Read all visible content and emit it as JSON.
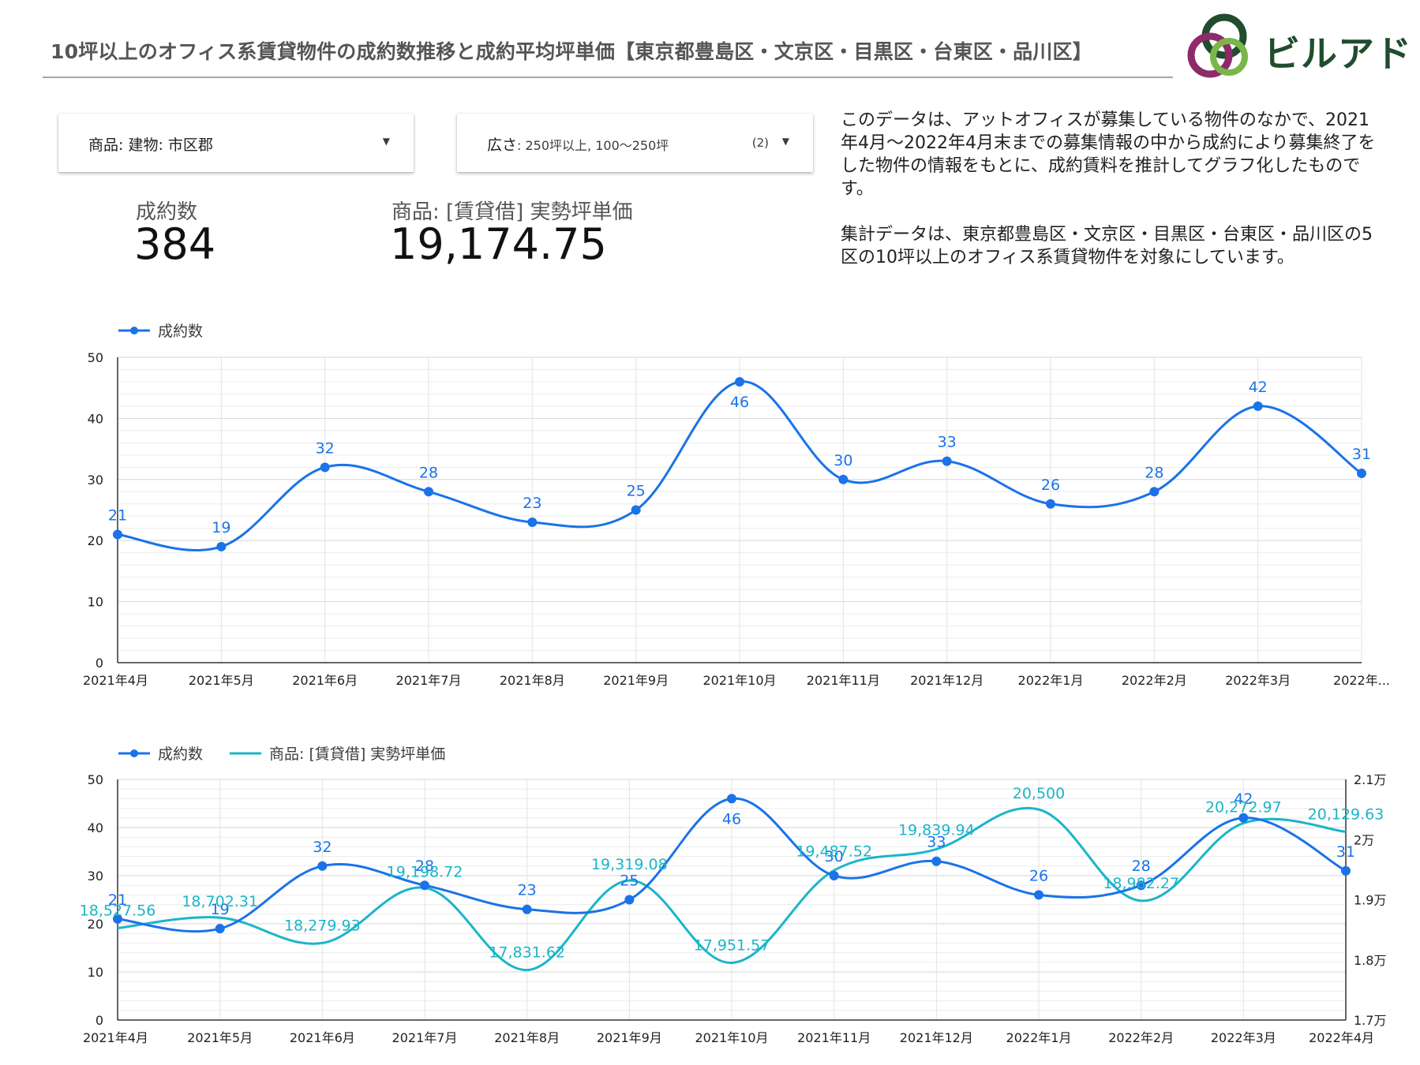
{
  "header": {
    "title": "10坪以上のオフィス系賃貸物件の成約数推移と成約平均坪単価【東京都豊島区・文京区・目黒区・台東区・品川区】",
    "logo_text": "ビルアド"
  },
  "filters": [
    {
      "label": "商品: 建物: 市区郡",
      "values": "",
      "count": ""
    },
    {
      "label": "広さ",
      "values": ": 250坪以上, 100〜250坪",
      "count": "(2)"
    }
  ],
  "kpis": [
    {
      "label": "成約数",
      "value": "384"
    },
    {
      "label": "商品: [賃貸借] 実勢坪単価",
      "value": "19,174.75"
    }
  ],
  "description": {
    "paragraph1": "このデータは、アットオフィスが募集している物件のなかで、2021年4月〜2022年4月末までの募集情報の中から成約により募集終了をした物件の情報をもとに、成約賃料を推計してグラフ化したものです。",
    "paragraph2": "集計データは、東京都豊島区・文京区・目黒区・台東区・品川区の5区の10坪以上のオフィス系賃貸物件を対象にしています。"
  },
  "colors": {
    "series1": "#1a73e8",
    "series2": "#1bb5c9",
    "grid": "#e0e0e0",
    "axis": "#333333"
  },
  "chart_data": [
    {
      "type": "line",
      "categories": [
        "2021年4月",
        "2021年5月",
        "2021年6月",
        "2021年7月",
        "2021年8月",
        "2021年9月",
        "2021年10月",
        "2021年11月",
        "2021年12月",
        "2022年1月",
        "2022年2月",
        "2022年3月",
        "2022年..."
      ],
      "series": [
        {
          "name": "成約数",
          "values": [
            21,
            19,
            32,
            28,
            23,
            25,
            46,
            30,
            33,
            26,
            28,
            42,
            31
          ],
          "labels": [
            "21",
            "19",
            "32",
            "28",
            "23",
            "25",
            "46",
            "30",
            "33",
            "26",
            "28",
            "42",
            "31"
          ]
        }
      ],
      "y_ticks": [
        "0",
        "10",
        "20",
        "30",
        "40",
        "50"
      ],
      "ylim": [
        0,
        50
      ],
      "grid": true,
      "legend_position": "top-left"
    },
    {
      "type": "line",
      "categories": [
        "2021年4月",
        "2021年5月",
        "2021年6月",
        "2021年7月",
        "2021年8月",
        "2021年9月",
        "2021年10月",
        "2021年11月",
        "2021年12月",
        "2022年1月",
        "2022年2月",
        "2022年3月",
        "2022年4月"
      ],
      "series": [
        {
          "name": "成約数",
          "axis": "left",
          "values": [
            21,
            19,
            32,
            28,
            23,
            25,
            46,
            30,
            33,
            26,
            28,
            42,
            31
          ],
          "labels": [
            "21",
            "19",
            "32",
            "28",
            "23",
            "25",
            "46",
            "30",
            "33",
            "26",
            "28",
            "42",
            "31"
          ]
        },
        {
          "name": "商品: [賃貸借] 実勢坪単価",
          "axis": "right",
          "values": [
            18527.56,
            18702.31,
            18279.93,
            19198.72,
            17831.62,
            19319.08,
            17951.57,
            19487.52,
            19839.94,
            20500,
            18982.27,
            20272.97,
            20129.63
          ],
          "labels": [
            "18,527.56",
            "18,702.31",
            "18,279.93",
            "19,198.72",
            "17,831.62",
            "19,319.08",
            "17,951.57",
            "19,487.52",
            "19,839.94",
            "20,500",
            "18,982.27",
            "20,272.97",
            "20,129.63"
          ]
        }
      ],
      "y_ticks": [
        "0",
        "10",
        "20",
        "30",
        "40",
        "50"
      ],
      "y2_ticks": [
        "1.7万",
        "1.8万",
        "1.9万",
        "2万",
        "2.1万"
      ],
      "ylim": [
        0,
        50
      ],
      "y2lim": [
        17000,
        21000
      ],
      "grid": true,
      "legend_position": "top-left"
    }
  ]
}
